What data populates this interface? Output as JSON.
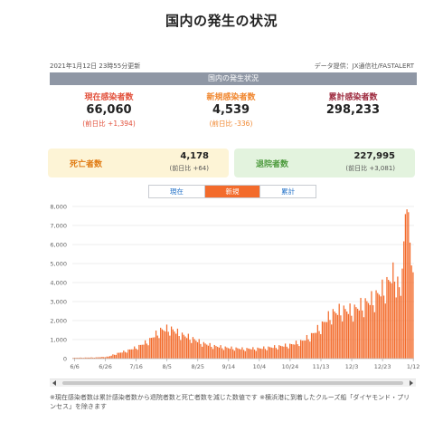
{
  "title": "国内の発生の状況",
  "updated": "2021年1月12日 23時55分更新",
  "source": "データ提供：JX通信社/FASTALERT",
  "banner": "国内の発生状況",
  "stats": {
    "current": {
      "label": "現在感染者数",
      "value": "66,060",
      "change": "(前日比 +1,394)"
    },
    "new": {
      "label": "新規感染者数",
      "value": "4,539",
      "change": "(前日比 -336)"
    },
    "total": {
      "label": "累計感染者数",
      "value": "298,233",
      "change": ""
    }
  },
  "deaths": {
    "label": "死亡者数",
    "value": "4,178",
    "change": "(前日比 +64)"
  },
  "recovered": {
    "label": "退院者数",
    "value": "227,995",
    "change": "(前日比 +3,081)"
  },
  "tabs": [
    {
      "label": "現在",
      "active": false
    },
    {
      "label": "新規",
      "active": true
    },
    {
      "label": "累計",
      "active": false
    }
  ],
  "colors": {
    "bar": "#f36b2b",
    "grid": "#e6e6e6",
    "tab_active": "#f36b2b",
    "tab_text": "#1f6fc7",
    "banner": "#8f97a5"
  },
  "footnote": "※現在感染者数は累計感染者数から退院者数と死亡者数を減じた数値です ※横浜港に到着したクルーズ船「ダイヤモンド・プリンセス」を除きます",
  "chart_data": {
    "type": "bar",
    "title": "",
    "xlabel": "",
    "ylabel": "",
    "ylim": [
      0,
      8000
    ],
    "yticks": [
      0,
      1000,
      2000,
      3000,
      4000,
      5000,
      6000,
      7000,
      8000
    ],
    "ytick_labels": [
      "0",
      "1,000",
      "2,000",
      "3,000",
      "4,000",
      "5,000",
      "6,000",
      "7,000",
      "8,000"
    ],
    "xtick_labels": [
      "6/6",
      "6/26",
      "7/16",
      "8/5",
      "8/25",
      "9/14",
      "10/4",
      "10/24",
      "11/13",
      "12/3",
      "12/23",
      "1/12"
    ],
    "grid": true,
    "start_date": "2020-06-05",
    "end_date": "2021-01-12",
    "anchors": [
      [
        "2020-06-05",
        40
      ],
      [
        "2020-06-20",
        60
      ],
      [
        "2020-06-28",
        100
      ],
      [
        "2020-07-03",
        250
      ],
      [
        "2020-07-10",
        400
      ],
      [
        "2020-07-17",
        600
      ],
      [
        "2020-07-24",
        900
      ],
      [
        "2020-07-29",
        1250
      ],
      [
        "2020-08-01",
        1450
      ],
      [
        "2020-08-07",
        1550
      ],
      [
        "2020-08-14",
        1250
      ],
      [
        "2020-08-21",
        1050
      ],
      [
        "2020-08-28",
        800
      ],
      [
        "2020-09-04",
        650
      ],
      [
        "2020-09-14",
        550
      ],
      [
        "2020-09-24",
        500
      ],
      [
        "2020-10-04",
        520
      ],
      [
        "2020-10-14",
        600
      ],
      [
        "2020-10-24",
        700
      ],
      [
        "2020-11-01",
        900
      ],
      [
        "2020-11-07",
        1200
      ],
      [
        "2020-11-13",
        1650
      ],
      [
        "2020-11-20",
        2300
      ],
      [
        "2020-11-27",
        2500
      ],
      [
        "2020-12-03",
        2450
      ],
      [
        "2020-12-10",
        2750
      ],
      [
        "2020-12-17",
        3050
      ],
      [
        "2020-12-24",
        3600
      ],
      [
        "2020-12-31",
        4400
      ],
      [
        "2021-01-04",
        3300
      ],
      [
        "2021-01-07",
        7600
      ],
      [
        "2021-01-08",
        7850
      ],
      [
        "2021-01-09",
        7700
      ],
      [
        "2021-01-10",
        6100
      ],
      [
        "2021-01-11",
        4900
      ],
      [
        "2021-01-12",
        4539
      ]
    ]
  }
}
